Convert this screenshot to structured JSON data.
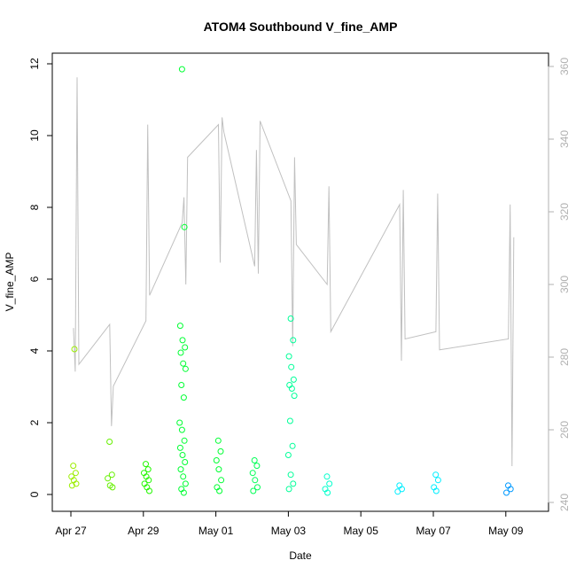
{
  "chart_data": {
    "type": "scatter",
    "title": "ATOM4 Southbound V_fine_AMP",
    "xlabel": "Date",
    "ylabel": "V_fine_AMP",
    "x_ticks": [
      "Apr 27",
      "Apr 29",
      "May 01",
      "May 03",
      "May 05",
      "May 07",
      "May 09"
    ],
    "y_ticks": [
      "0",
      "2",
      "4",
      "6",
      "8",
      "10",
      "12"
    ],
    "y2_ticks": [
      "240",
      "260",
      "280",
      "300",
      "320",
      "340",
      "360"
    ],
    "ylim": [
      0,
      12
    ],
    "y2lim": [
      240,
      360
    ],
    "xlim": [
      "Apr 27",
      "May 10"
    ],
    "grid": false,
    "colors": {
      "scatter_gradient": [
        "#99ee00",
        "#00ff44",
        "#00ffdd",
        "#0088ff"
      ],
      "secondary_line": "#c0c0c0",
      "secondary_axis": "#b0b0b0"
    },
    "series": [
      {
        "values": [
          {
            "x": "Apr 27",
            "y": 0.8
          },
          {
            "x": "Apr 27",
            "y": 0.6
          },
          {
            "x": "Apr 27",
            "y": 0.5
          },
          {
            "x": "Apr 27",
            "y": 0.4
          },
          {
            "x": "Apr 27",
            "y": 0.3
          },
          {
            "x": "Apr 27",
            "y": 0.25
          },
          {
            "x": "Apr 27",
            "y": 4.05
          },
          {
            "x": "Apr 28",
            "y": 1.47
          },
          {
            "x": "Apr 28",
            "y": 0.55
          },
          {
            "x": "Apr 28",
            "y": 0.45
          },
          {
            "x": "Apr 28",
            "y": 0.25
          },
          {
            "x": "Apr 28",
            "y": 0.2
          },
          {
            "x": "Apr 29",
            "y": 0.85
          },
          {
            "x": "Apr 29",
            "y": 0.7
          },
          {
            "x": "Apr 29",
            "y": 0.6
          },
          {
            "x": "Apr 29",
            "y": 0.5
          },
          {
            "x": "Apr 29",
            "y": 0.4
          },
          {
            "x": "Apr 29",
            "y": 0.3
          },
          {
            "x": "Apr 29",
            "y": 0.2
          },
          {
            "x": "Apr 29",
            "y": 0.1
          },
          {
            "x": "Apr 30",
            "y": 11.85
          },
          {
            "x": "Apr 30",
            "y": 7.45
          },
          {
            "x": "Apr 30",
            "y": 4.7
          },
          {
            "x": "Apr 30",
            "y": 4.3
          },
          {
            "x": "Apr 30",
            "y": 4.1
          },
          {
            "x": "Apr 30",
            "y": 3.95
          },
          {
            "x": "Apr 30",
            "y": 3.65
          },
          {
            "x": "Apr 30",
            "y": 3.5
          },
          {
            "x": "Apr 30",
            "y": 3.05
          },
          {
            "x": "Apr 30",
            "y": 2.7
          },
          {
            "x": "Apr 30",
            "y": 2.0
          },
          {
            "x": "Apr 30",
            "y": 1.8
          },
          {
            "x": "Apr 30",
            "y": 1.5
          },
          {
            "x": "Apr 30",
            "y": 1.3
          },
          {
            "x": "Apr 30",
            "y": 1.1
          },
          {
            "x": "Apr 30",
            "y": 0.9
          },
          {
            "x": "Apr 30",
            "y": 0.7
          },
          {
            "x": "Apr 30",
            "y": 0.5
          },
          {
            "x": "Apr 30",
            "y": 0.3
          },
          {
            "x": "Apr 30",
            "y": 0.15
          },
          {
            "x": "Apr 30",
            "y": 0.05
          },
          {
            "x": "May 01",
            "y": 1.5
          },
          {
            "x": "May 01",
            "y": 1.2
          },
          {
            "x": "May 01",
            "y": 0.95
          },
          {
            "x": "May 01",
            "y": 0.7
          },
          {
            "x": "May 01",
            "y": 0.4
          },
          {
            "x": "May 01",
            "y": 0.2
          },
          {
            "x": "May 01",
            "y": 0.1
          },
          {
            "x": "May 02",
            "y": 0.95
          },
          {
            "x": "May 02",
            "y": 0.8
          },
          {
            "x": "May 02",
            "y": 0.6
          },
          {
            "x": "May 02",
            "y": 0.4
          },
          {
            "x": "May 02",
            "y": 0.2
          },
          {
            "x": "May 02",
            "y": 0.1
          },
          {
            "x": "May 03",
            "y": 4.9
          },
          {
            "x": "May 03",
            "y": 4.3
          },
          {
            "x": "May 03",
            "y": 3.85
          },
          {
            "x": "May 03",
            "y": 3.55
          },
          {
            "x": "May 03",
            "y": 3.2
          },
          {
            "x": "May 03",
            "y": 3.05
          },
          {
            "x": "May 03",
            "y": 2.95
          },
          {
            "x": "May 03",
            "y": 2.75
          },
          {
            "x": "May 03",
            "y": 2.05
          },
          {
            "x": "May 03",
            "y": 1.35
          },
          {
            "x": "May 03",
            "y": 1.1
          },
          {
            "x": "May 03",
            "y": 0.55
          },
          {
            "x": "May 03",
            "y": 0.3
          },
          {
            "x": "May 03",
            "y": 0.15
          },
          {
            "x": "May 04",
            "y": 0.5
          },
          {
            "x": "May 04",
            "y": 0.3
          },
          {
            "x": "May 04",
            "y": 0.15
          },
          {
            "x": "May 04",
            "y": 0.05
          },
          {
            "x": "May 06",
            "y": 0.25
          },
          {
            "x": "May 06",
            "y": 0.15
          },
          {
            "x": "May 06",
            "y": 0.08
          },
          {
            "x": "May 07",
            "y": 0.55
          },
          {
            "x": "May 07",
            "y": 0.4
          },
          {
            "x": "May 07",
            "y": 0.2
          },
          {
            "x": "May 07",
            "y": 0.1
          },
          {
            "x": "May 09",
            "y": 0.25
          },
          {
            "x": "May 09",
            "y": 0.15
          },
          {
            "x": "May 09",
            "y": 0.05
          }
        ]
      },
      {
        "axis": "right",
        "values": [
          {
            "x": "Apr 27",
            "y": 288
          },
          {
            "x": "Apr 27",
            "y": 276
          },
          {
            "x": "Apr 27",
            "y": 357
          },
          {
            "x": "Apr 27",
            "y": 278
          },
          {
            "x": "Apr 28",
            "y": 289
          },
          {
            "x": "Apr 28",
            "y": 261
          },
          {
            "x": "Apr 28",
            "y": 272
          },
          {
            "x": "Apr 29",
            "y": 290
          },
          {
            "x": "Apr 29",
            "y": 344
          },
          {
            "x": "Apr 29",
            "y": 297
          },
          {
            "x": "Apr 30",
            "y": 317
          },
          {
            "x": "Apr 30",
            "y": 324
          },
          {
            "x": "Apr 30",
            "y": 300
          },
          {
            "x": "Apr 30",
            "y": 335
          },
          {
            "x": "May 01",
            "y": 344
          },
          {
            "x": "May 01",
            "y": 306
          },
          {
            "x": "May 01",
            "y": 346
          },
          {
            "x": "May 01",
            "y": 342
          },
          {
            "x": "May 02",
            "y": 305
          },
          {
            "x": "May 02",
            "y": 337
          },
          {
            "x": "May 02",
            "y": 303
          },
          {
            "x": "May 02",
            "y": 345
          },
          {
            "x": "May 03",
            "y": 323
          },
          {
            "x": "May 03",
            "y": 283
          },
          {
            "x": "May 03",
            "y": 335
          },
          {
            "x": "May 03",
            "y": 311
          },
          {
            "x": "May 04",
            "y": 300
          },
          {
            "x": "May 04",
            "y": 327
          },
          {
            "x": "May 04",
            "y": 287
          },
          {
            "x": "May 06",
            "y": 322
          },
          {
            "x": "May 06",
            "y": 279
          },
          {
            "x": "May 06",
            "y": 326
          },
          {
            "x": "May 06",
            "y": 285
          },
          {
            "x": "May 07",
            "y": 287
          },
          {
            "x": "May 07",
            "y": 325
          },
          {
            "x": "May 07",
            "y": 282
          },
          {
            "x": "May 09",
            "y": 285
          },
          {
            "x": "May 09",
            "y": 322
          },
          {
            "x": "May 09",
            "y": 250
          },
          {
            "x": "May 09",
            "y": 313
          }
        ]
      }
    ]
  }
}
